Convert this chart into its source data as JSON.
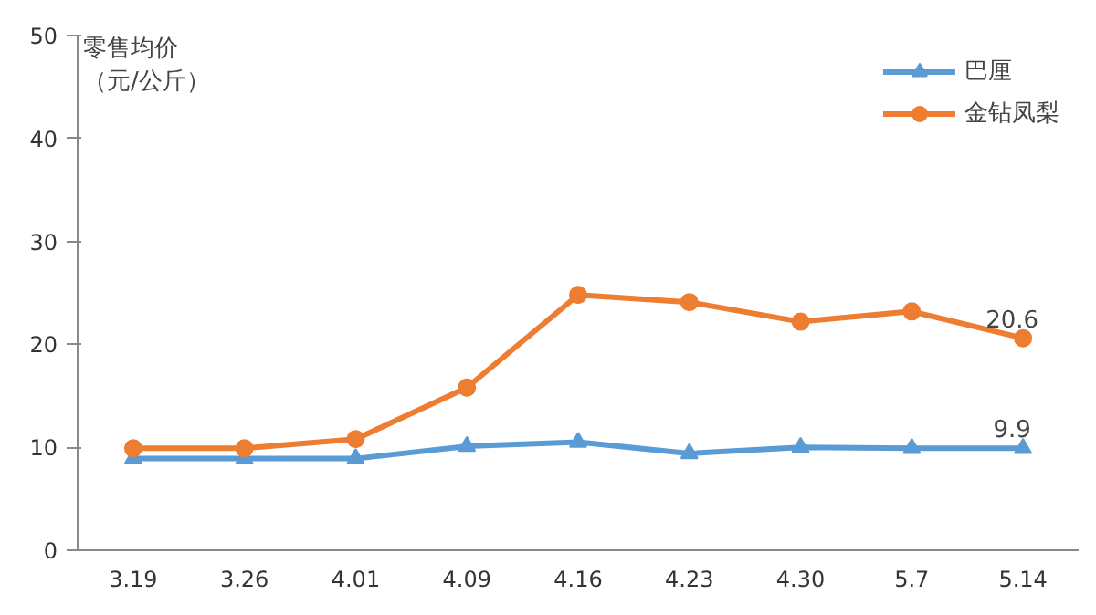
{
  "chart_data": {
    "type": "line",
    "ylabel": "零售均价（元/公斤）",
    "categories": [
      "3.19",
      "3.26",
      "4.01",
      "4.09",
      "4.16",
      "4.23",
      "4.30",
      "5.7",
      "5.14"
    ],
    "series": [
      {
        "name": "巴厘",
        "color": "#5b9bd5",
        "marker": "triangle",
        "values": [
          8.9,
          8.9,
          8.9,
          10.1,
          10.5,
          9.4,
          10.0,
          9.9,
          9.9
        ],
        "value_labels": [
          null,
          null,
          null,
          null,
          null,
          null,
          null,
          null,
          "9.9"
        ]
      },
      {
        "name": "金钻凤梨",
        "color": "#ed7d31",
        "marker": "circle",
        "values": [
          9.9,
          9.9,
          10.8,
          15.8,
          24.8,
          24.1,
          22.2,
          23.2,
          20.6
        ],
        "value_labels": [
          null,
          null,
          null,
          null,
          null,
          null,
          null,
          null,
          "20.6"
        ]
      }
    ],
    "ylim": [
      0,
      50
    ],
    "yticks": [
      0,
      10,
      20,
      30,
      40,
      50
    ],
    "grid": false,
    "legend": "top right",
    "line_style": "solid"
  }
}
